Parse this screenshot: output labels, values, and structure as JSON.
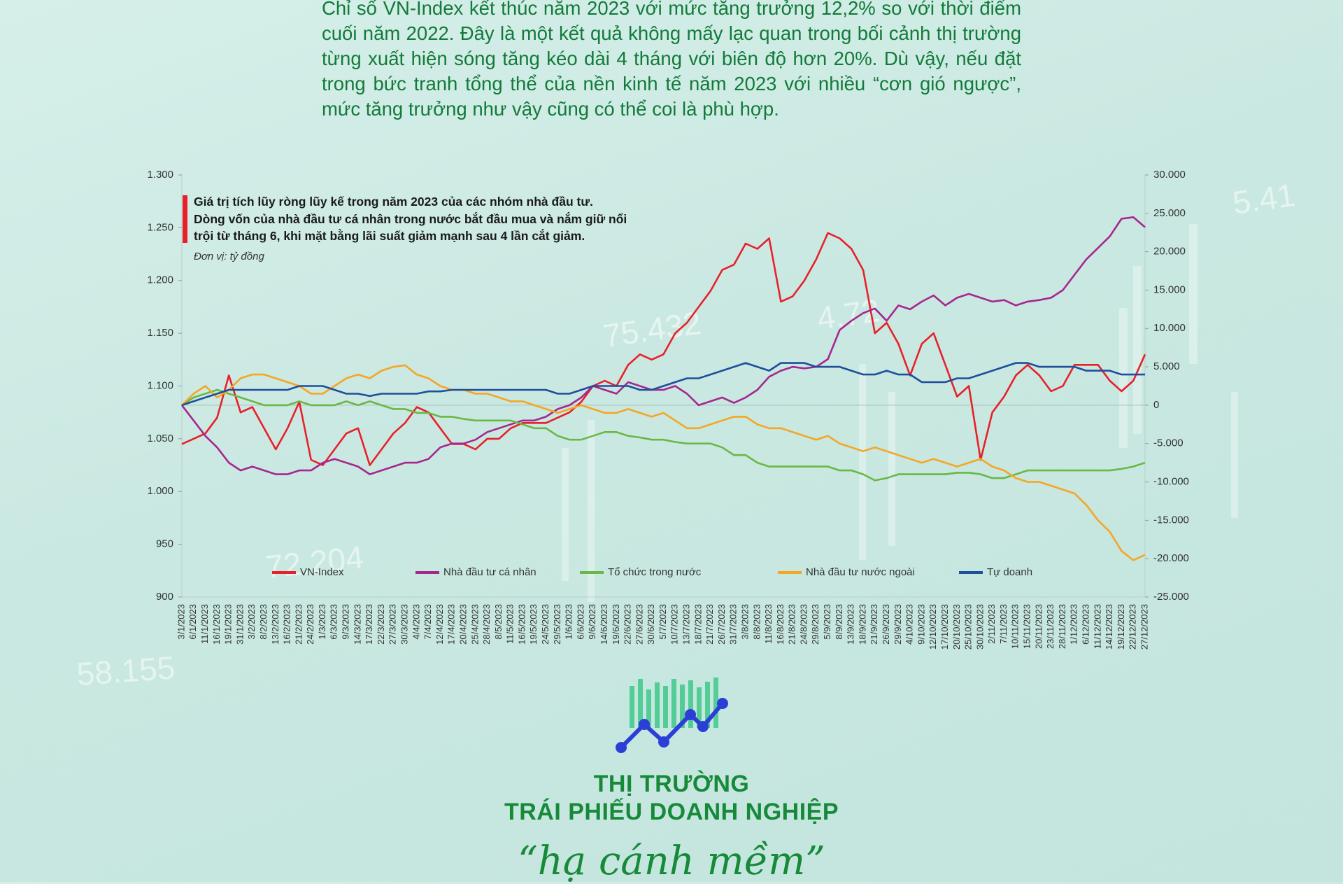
{
  "article": {
    "paragraph": "Chỉ số VN-Index kết thúc năm 2023 với mức tăng trưởng 12,2% so với thời điểm cuối năm 2022. Đây là một kết quả không mấy lạc quan trong bối cảnh thị trường từng xuất hiện sóng tăng kéo dài 4 tháng với biên độ hơn 20%. Dù vậy, nếu đặt trong bức tranh tổng thể của nền kinh tế năm 2023 với nhiều “cơn gió ngược”, mức tăng trưởng như vậy cũng có thể coi là phù hợp."
  },
  "decor": {
    "background_numbers": [
      "75.432",
      "4.72",
      "5.41",
      "72.204",
      "58.155"
    ]
  },
  "chart_data": {
    "type": "line",
    "title": "Giá trị tích lũy ròng lũy kế trong năm 2023 của các nhóm nhà đầu tư.",
    "subtitle": "Dòng vốn của nhà đầu tư cá nhân trong nước bắt đầu mua và nắm giữ nổi trội từ tháng 6, khi mặt bằng lãi suất giảm mạnh sau 4 lần cắt giảm.",
    "unit_note": "Đơn vị: tỷ đồng",
    "legend": "bottom",
    "categories": [
      "3/1/2023",
      "6/1/2023",
      "11/1/2023",
      "16/1/2023",
      "19/1/2023",
      "31/1/2023",
      "3/2/2023",
      "8/2/2023",
      "13/2/2023",
      "16/2/2023",
      "21/2/2023",
      "24/2/2023",
      "1/3/2023",
      "6/3/2023",
      "9/3/2023",
      "14/3/2023",
      "17/3/2023",
      "22/3/2023",
      "27/3/2023",
      "30/3/2023",
      "4/4/2023",
      "7/4/2023",
      "12/4/2023",
      "17/4/2023",
      "20/4/2023",
      "25/4/2023",
      "28/4/2023",
      "8/5/2023",
      "11/5/2023",
      "16/5/2023",
      "19/5/2023",
      "24/5/2023",
      "29/5/2023",
      "1/6/2023",
      "6/6/2023",
      "9/6/2023",
      "14/6/2023",
      "19/6/2023",
      "22/6/2023",
      "27/6/2023",
      "30/6/2023",
      "5/7/2023",
      "10/7/2023",
      "13/7/2023",
      "18/7/2023",
      "21/7/2023",
      "26/7/2023",
      "31/7/2023",
      "3/8/2023",
      "8/8/2023",
      "11/8/2023",
      "16/8/2023",
      "21/8/2023",
      "24/8/2023",
      "29/8/2023",
      "5/9/2023",
      "8/9/2023",
      "13/9/2023",
      "18/9/2023",
      "21/9/2023",
      "26/9/2023",
      "29/9/2023",
      "4/10/2023",
      "9/10/2023",
      "12/10/2023",
      "17/10/2023",
      "20/10/2023",
      "25/10/2023",
      "30/10/2023",
      "2/11/2023",
      "7/11/2023",
      "10/11/2023",
      "15/11/2023",
      "20/11/2023",
      "23/11/2023",
      "28/11/2023",
      "1/12/2023",
      "6/12/2023",
      "11/12/2023",
      "14/12/2023",
      "19/12/2023",
      "22/12/2023",
      "27/12/2023"
    ],
    "series": [
      {
        "name": "VN-Index",
        "color": "#e8202a",
        "axis": "y",
        "values": [
          1045,
          1050,
          1055,
          1070,
          1110,
          1075,
          1080,
          1060,
          1040,
          1060,
          1085,
          1030,
          1025,
          1040,
          1055,
          1060,
          1025,
          1040,
          1055,
          1065,
          1080,
          1075,
          1060,
          1045,
          1045,
          1040,
          1050,
          1050,
          1060,
          1065,
          1065,
          1065,
          1070,
          1075,
          1085,
          1100,
          1105,
          1100,
          1120,
          1130,
          1125,
          1130,
          1150,
          1160,
          1175,
          1190,
          1210,
          1215,
          1235,
          1230,
          1240,
          1180,
          1185,
          1200,
          1220,
          1245,
          1240,
          1230,
          1210,
          1150,
          1160,
          1140,
          1110,
          1140,
          1150,
          1120,
          1090,
          1100,
          1030,
          1075,
          1090,
          1110,
          1120,
          1110,
          1095,
          1100,
          1120,
          1120,
          1120,
          1105,
          1095,
          1105,
          1130
        ]
      },
      {
        "name": "Nhà đầu tư cá nhân",
        "color": "#a6278f",
        "axis": "y2",
        "values": [
          0,
          -2000,
          -4000,
          -5500,
          -7500,
          -8500,
          -8000,
          -8500,
          -9000,
          -9000,
          -8500,
          -8500,
          -7500,
          -7000,
          -7500,
          -8000,
          -9000,
          -8500,
          -8000,
          -7500,
          -7500,
          -7000,
          -5500,
          -5000,
          -5000,
          -4500,
          -3500,
          -3000,
          -2500,
          -2000,
          -2000,
          -1500,
          -500,
          0,
          1000,
          2500,
          2000,
          1500,
          3000,
          2500,
          2000,
          2000,
          2500,
          1500,
          0,
          500,
          1000,
          300,
          1000,
          2000,
          3700,
          4500,
          5000,
          4800,
          5000,
          6000,
          9800,
          11000,
          12000,
          12600,
          11000,
          13000,
          12500,
          13500,
          14300,
          13000,
          14000,
          14500,
          14000,
          13500,
          13700,
          13000,
          13500,
          13700,
          14000,
          15000,
          17000,
          19000,
          20500,
          22000,
          24300,
          24500,
          23200
        ]
      },
      {
        "name": "Tổ chức trong nước",
        "color": "#6ab845",
        "axis": "y2",
        "values": [
          0,
          1000,
          1500,
          2000,
          1500,
          1000,
          500,
          0,
          0,
          0,
          500,
          0,
          0,
          0,
          500,
          0,
          500,
          0,
          -500,
          -500,
          -1000,
          -1000,
          -1500,
          -1500,
          -1800,
          -2000,
          -2000,
          -2000,
          -2000,
          -2500,
          -3000,
          -3000,
          -4000,
          -4500,
          -4500,
          -4000,
          -3500,
          -3500,
          -4000,
          -4200,
          -4500,
          -4500,
          -4800,
          -5000,
          -5000,
          -5000,
          -5500,
          -6500,
          -6500,
          -7500,
          -8000,
          -8000,
          -8000,
          -8000,
          -8000,
          -8000,
          -8500,
          -8500,
          -9000,
          -9800,
          -9500,
          -9000,
          -9000,
          -9000,
          -9000,
          -9000,
          -8800,
          -8800,
          -9000,
          -9500,
          -9500,
          -9000,
          -8500,
          -8500,
          -8500,
          -8500,
          -8500,
          -8500,
          -8500,
          -8500,
          -8300,
          -8000,
          -7500
        ]
      },
      {
        "name": "Nhà đầu tư nước ngoài",
        "color": "#f5a623",
        "axis": "y2",
        "values": [
          0,
          1500,
          2500,
          1000,
          2000,
          3500,
          4000,
          4000,
          3500,
          3000,
          2500,
          1500,
          1500,
          2500,
          3500,
          4000,
          3500,
          4500,
          5000,
          5200,
          4000,
          3500,
          2500,
          2000,
          2000,
          1500,
          1500,
          1000,
          500,
          500,
          0,
          -500,
          -1000,
          -500,
          0,
          -500,
          -1000,
          -1000,
          -500,
          -1000,
          -1500,
          -1000,
          -2000,
          -3000,
          -3000,
          -2500,
          -2000,
          -1500,
          -1500,
          -2500,
          -3000,
          -3000,
          -3500,
          -4000,
          -4500,
          -4000,
          -5000,
          -5500,
          -6000,
          -5500,
          -6000,
          -6500,
          -7000,
          -7500,
          -7000,
          -7500,
          -8000,
          -7500,
          -7000,
          -8000,
          -8500,
          -9500,
          -10000,
          -10000,
          -10500,
          -11000,
          -11500,
          -13000,
          -15000,
          -16500,
          -19000,
          -20200,
          -19500
        ]
      },
      {
        "name": "Tự doanh",
        "color": "#1f4e9c",
        "axis": "y2",
        "values": [
          0,
          500,
          1000,
          1500,
          2000,
          2000,
          2000,
          2000,
          2000,
          2000,
          2500,
          2500,
          2500,
          2000,
          1500,
          1500,
          1200,
          1500,
          1500,
          1500,
          1500,
          1800,
          1800,
          2000,
          2000,
          2000,
          2000,
          2000,
          2000,
          2000,
          2000,
          2000,
          1500,
          1500,
          2000,
          2500,
          2500,
          2500,
          2500,
          2000,
          2000,
          2500,
          3000,
          3500,
          3500,
          4000,
          4500,
          5000,
          5500,
          5000,
          4500,
          5500,
          5500,
          5500,
          5000,
          5000,
          5000,
          4500,
          4000,
          4000,
          4500,
          4000,
          4000,
          3000,
          3000,
          3000,
          3500,
          3500,
          4000,
          4500,
          5000,
          5500,
          5500,
          5000,
          5000,
          5000,
          5000,
          4500,
          4500,
          4500,
          4000,
          4000,
          4000
        ]
      }
    ],
    "ylim": [
      900,
      1300
    ],
    "yticks": [
      900,
      950,
      {
        "value": 1000,
        "label": "1.000"
      },
      {
        "value": 1050,
        "label": "1.050"
      },
      {
        "value": 1100,
        "label": "1.100"
      },
      {
        "value": 1150,
        "label": "1.150"
      },
      {
        "value": 1200,
        "label": "1.200"
      },
      {
        "value": 1250,
        "label": "1.250"
      },
      {
        "value": 1300,
        "label": "1.300"
      }
    ],
    "y2lim": [
      -25000,
      30000
    ],
    "y2ticks": [
      {
        "value": 30000,
        "label": "30.000"
      },
      {
        "value": 25000,
        "label": "25.000"
      },
      {
        "value": 20000,
        "label": "20.000"
      },
      {
        "value": 15000,
        "label": "15.000"
      },
      {
        "value": 10000,
        "label": "10.000"
      },
      {
        "value": 5000,
        "label": "5.000"
      },
      0,
      {
        "value": -5000,
        "label": "-5.000"
      },
      {
        "value": -10000,
        "label": "-10.000"
      },
      {
        "value": -15000,
        "label": "-15.000"
      },
      {
        "value": -20000,
        "label": "-20.000"
      },
      {
        "value": -25000,
        "label": "-25.000"
      }
    ]
  },
  "section": {
    "heading_lines": [
      "THỊ TRƯỜNG",
      "TRÁI PHIẾU DOANH NGHIỆP"
    ],
    "tagline": "“hạ cánh mềm”"
  }
}
